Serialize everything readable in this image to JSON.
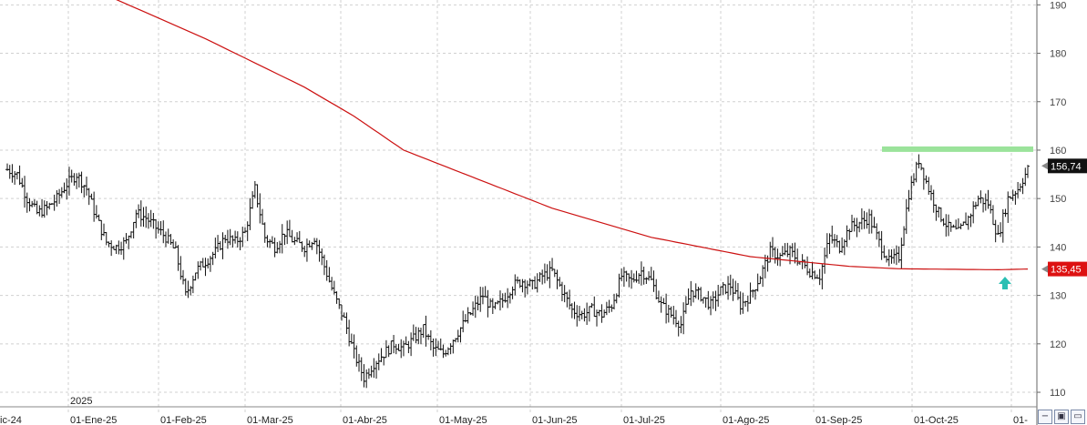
{
  "chart_data": {
    "type": "ohlc",
    "title": "",
    "xlabel": "",
    "ylabel": "",
    "ylim": [
      107,
      191
    ],
    "y_ticks": [
      110,
      120,
      130,
      140,
      150,
      160,
      170,
      180,
      190
    ],
    "x_tick_labels": [
      "ic-24",
      "01-Ene-25",
      "01-Feb-25",
      "01-Mar-25",
      "01-Abr-25",
      "01-May-25",
      "01-Jun-25",
      "01-Jul-25",
      "01-Ago-25",
      "01-Sep-25",
      "01-Oct-25",
      "01-"
    ],
    "year_label": "2025",
    "last_price_label": "156,74",
    "ma_price_label": "135,45",
    "last_price": 156.74,
    "ma_last": 135.45,
    "resistance_level": 160.2,
    "colors": {
      "bars": "#111111",
      "ma": "#cc1111",
      "resistance": "#9be39b",
      "arrow": "#2bbfb3",
      "grid": "#d0d0d0"
    },
    "price_path": [
      [
        0,
        156
      ],
      [
        1,
        155
      ],
      [
        2,
        150
      ],
      [
        3,
        147
      ],
      [
        4,
        148
      ],
      [
        5,
        150
      ],
      [
        6,
        153
      ],
      [
        7,
        155
      ],
      [
        8,
        152
      ],
      [
        9,
        146
      ],
      [
        10,
        141
      ],
      [
        11,
        140
      ],
      [
        12,
        141
      ],
      [
        13,
        147
      ],
      [
        14,
        146
      ],
      [
        15,
        144
      ],
      [
        16,
        142
      ],
      [
        17,
        139
      ],
      [
        18,
        130
      ],
      [
        19,
        135
      ],
      [
        20,
        137
      ],
      [
        21,
        139
      ],
      [
        22,
        142
      ],
      [
        23,
        141
      ],
      [
        24,
        143
      ],
      [
        25,
        152
      ],
      [
        26,
        142
      ],
      [
        27,
        140
      ],
      [
        28,
        143
      ],
      [
        29,
        141
      ],
      [
        30,
        140
      ],
      [
        31,
        142
      ],
      [
        32,
        136
      ],
      [
        33,
        130
      ],
      [
        34,
        125
      ],
      [
        35,
        118
      ],
      [
        36,
        113
      ],
      [
        37,
        116
      ],
      [
        38,
        118
      ],
      [
        39,
        120
      ],
      [
        40,
        119
      ],
      [
        41,
        121
      ],
      [
        42,
        123
      ],
      [
        43,
        119
      ],
      [
        44,
        118
      ],
      [
        45,
        121
      ],
      [
        46,
        124
      ],
      [
        47,
        127
      ],
      [
        48,
        130
      ],
      [
        49,
        127
      ],
      [
        50,
        129
      ],
      [
        51,
        132
      ],
      [
        52,
        133
      ],
      [
        53,
        132
      ],
      [
        54,
        134
      ],
      [
        55,
        135
      ],
      [
        56,
        131
      ],
      [
        57,
        127
      ],
      [
        58,
        126
      ],
      [
        59,
        127
      ],
      [
        60,
        126
      ],
      [
        61,
        128
      ],
      [
        62,
        134
      ],
      [
        63,
        133
      ],
      [
        64,
        135
      ],
      [
        65,
        133
      ],
      [
        66,
        128
      ],
      [
        67,
        126
      ],
      [
        68,
        124
      ],
      [
        69,
        131
      ],
      [
        70,
        130
      ],
      [
        71,
        128
      ],
      [
        72,
        131
      ],
      [
        73,
        132
      ],
      [
        74,
        128
      ],
      [
        75,
        130
      ],
      [
        76,
        134
      ],
      [
        77,
        139
      ],
      [
        78,
        138
      ],
      [
        79,
        139
      ],
      [
        80,
        137
      ],
      [
        81,
        135
      ],
      [
        82,
        134
      ],
      [
        83,
        142
      ],
      [
        84,
        140
      ],
      [
        85,
        144
      ],
      [
        86,
        145
      ],
      [
        87,
        146
      ],
      [
        88,
        141
      ],
      [
        89,
        137
      ],
      [
        90,
        138
      ],
      [
        91,
        151
      ],
      [
        92,
        158
      ],
      [
        93,
        152
      ],
      [
        94,
        147
      ],
      [
        95,
        144
      ],
      [
        96,
        143
      ],
      [
        97,
        146
      ],
      [
        98,
        150
      ],
      [
        99,
        149
      ],
      [
        100,
        142
      ],
      [
        101,
        150
      ],
      [
        102,
        152
      ],
      [
        103,
        156
      ]
    ],
    "ma_path": [
      [
        0,
        200
      ],
      [
        10,
        192
      ],
      [
        20,
        183
      ],
      [
        30,
        173
      ],
      [
        35,
        167
      ],
      [
        40,
        160
      ],
      [
        45,
        156
      ],
      [
        50,
        152
      ],
      [
        55,
        148
      ],
      [
        60,
        145
      ],
      [
        65,
        142
      ],
      [
        70,
        140
      ],
      [
        75,
        138
      ],
      [
        80,
        137
      ],
      [
        85,
        136
      ],
      [
        90,
        135.5
      ],
      [
        95,
        135.4
      ],
      [
        100,
        135.3
      ],
      [
        103,
        135.45
      ]
    ]
  },
  "toolbar": {
    "icons": [
      "zoom-minus-icon",
      "save-icon",
      "window-icon"
    ]
  }
}
